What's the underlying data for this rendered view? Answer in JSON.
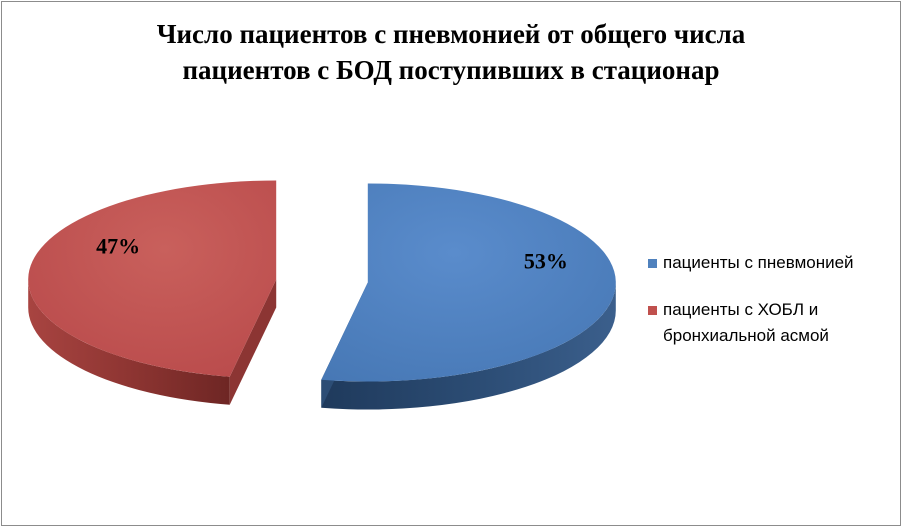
{
  "chart_data": {
    "type": "pie",
    "title_lines": [
      "Число пациентов с пневмонией от общего числа",
      "пациентов с БОД поступивших в стационар"
    ],
    "slices": [
      {
        "label": "пациенты с пневмонией",
        "value": 53,
        "display": "53%",
        "color": "#4f81bd",
        "color_side": "#2c4d75"
      },
      {
        "label": "пациенты с ХОБЛ и бронхиальной асмой",
        "value": 47,
        "display": "47%",
        "color": "#c0504d",
        "color_side": "#8c3533"
      }
    ],
    "legend_placement": "right",
    "exploded": true,
    "style": "3d"
  }
}
